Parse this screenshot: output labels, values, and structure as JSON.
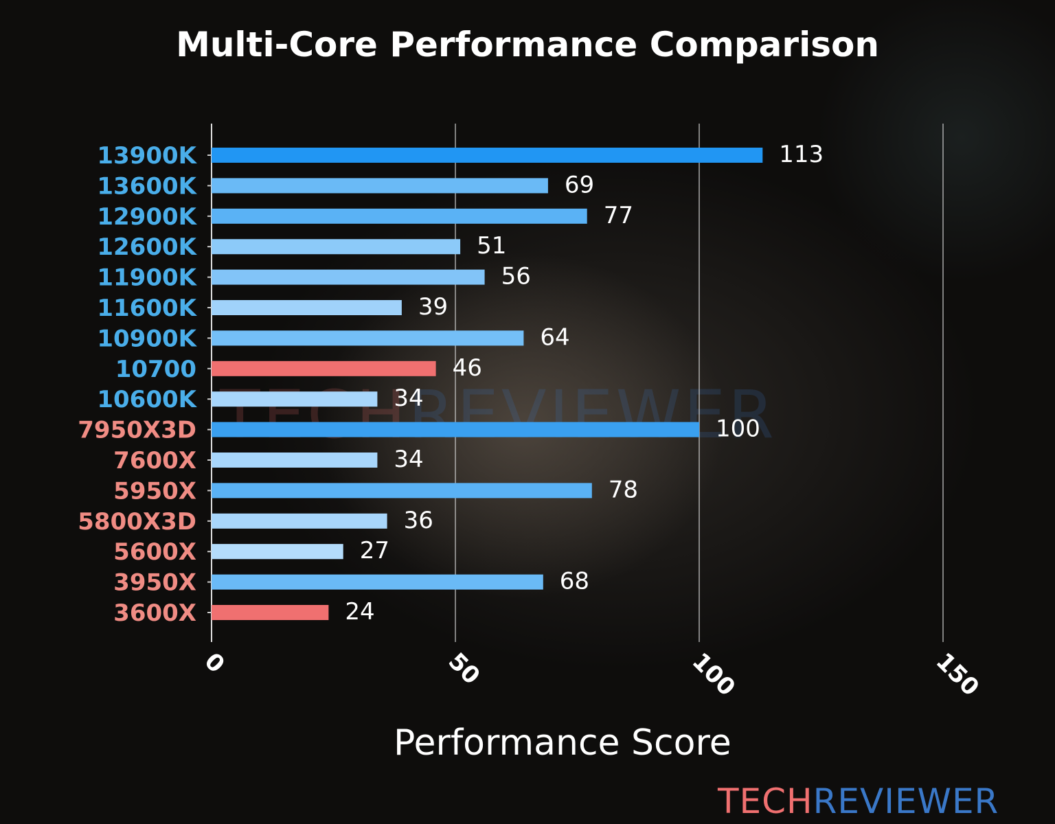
{
  "chart_data": {
    "type": "bar",
    "orientation": "horizontal",
    "title": "Multi-Core Performance Comparison",
    "xlabel": "Performance Score",
    "ylabel": "",
    "xlim": [
      0,
      150
    ],
    "xticks": [
      "0",
      "50",
      "100",
      "150"
    ],
    "grid": "vertical",
    "categories": [
      "13900K",
      "13600K",
      "12900K",
      "12600K",
      "11900K",
      "11600K",
      "10900K",
      "10700",
      "10600K",
      "7950X3D",
      "7600X",
      "5950X",
      "5800X3D",
      "5600X",
      "3950X",
      "3600X"
    ],
    "values": [
      113,
      69,
      77,
      51,
      56,
      39,
      64,
      46,
      34,
      100,
      34,
      78,
      36,
      27,
      68,
      24
    ],
    "bar_colors": [
      "#2196f3",
      "#6abaf6",
      "#5ab2f5",
      "#8ccaf9",
      "#82c4f8",
      "#a0d2fa",
      "#74bff7",
      "#f07070",
      "#a8d6fb",
      "#3aa0f0",
      "#a8d6fb",
      "#5ab2f5",
      "#a8d6fb",
      "#b4dcfb",
      "#6abaf6",
      "#f07070"
    ],
    "label_colors": [
      "#4aaeea",
      "#4aaeea",
      "#4aaeea",
      "#4aaeea",
      "#4aaeea",
      "#4aaeea",
      "#4aaeea",
      "#4aaeea",
      "#4aaeea",
      "#f08c84",
      "#f08c84",
      "#f08c84",
      "#f08c84",
      "#f08c84",
      "#f08c84",
      "#f08c84"
    ]
  },
  "watermark": {
    "part1": "TECH",
    "part2": "REVIEWER"
  },
  "logo": {
    "part1": "TECH",
    "part2": "REVIEWER"
  }
}
